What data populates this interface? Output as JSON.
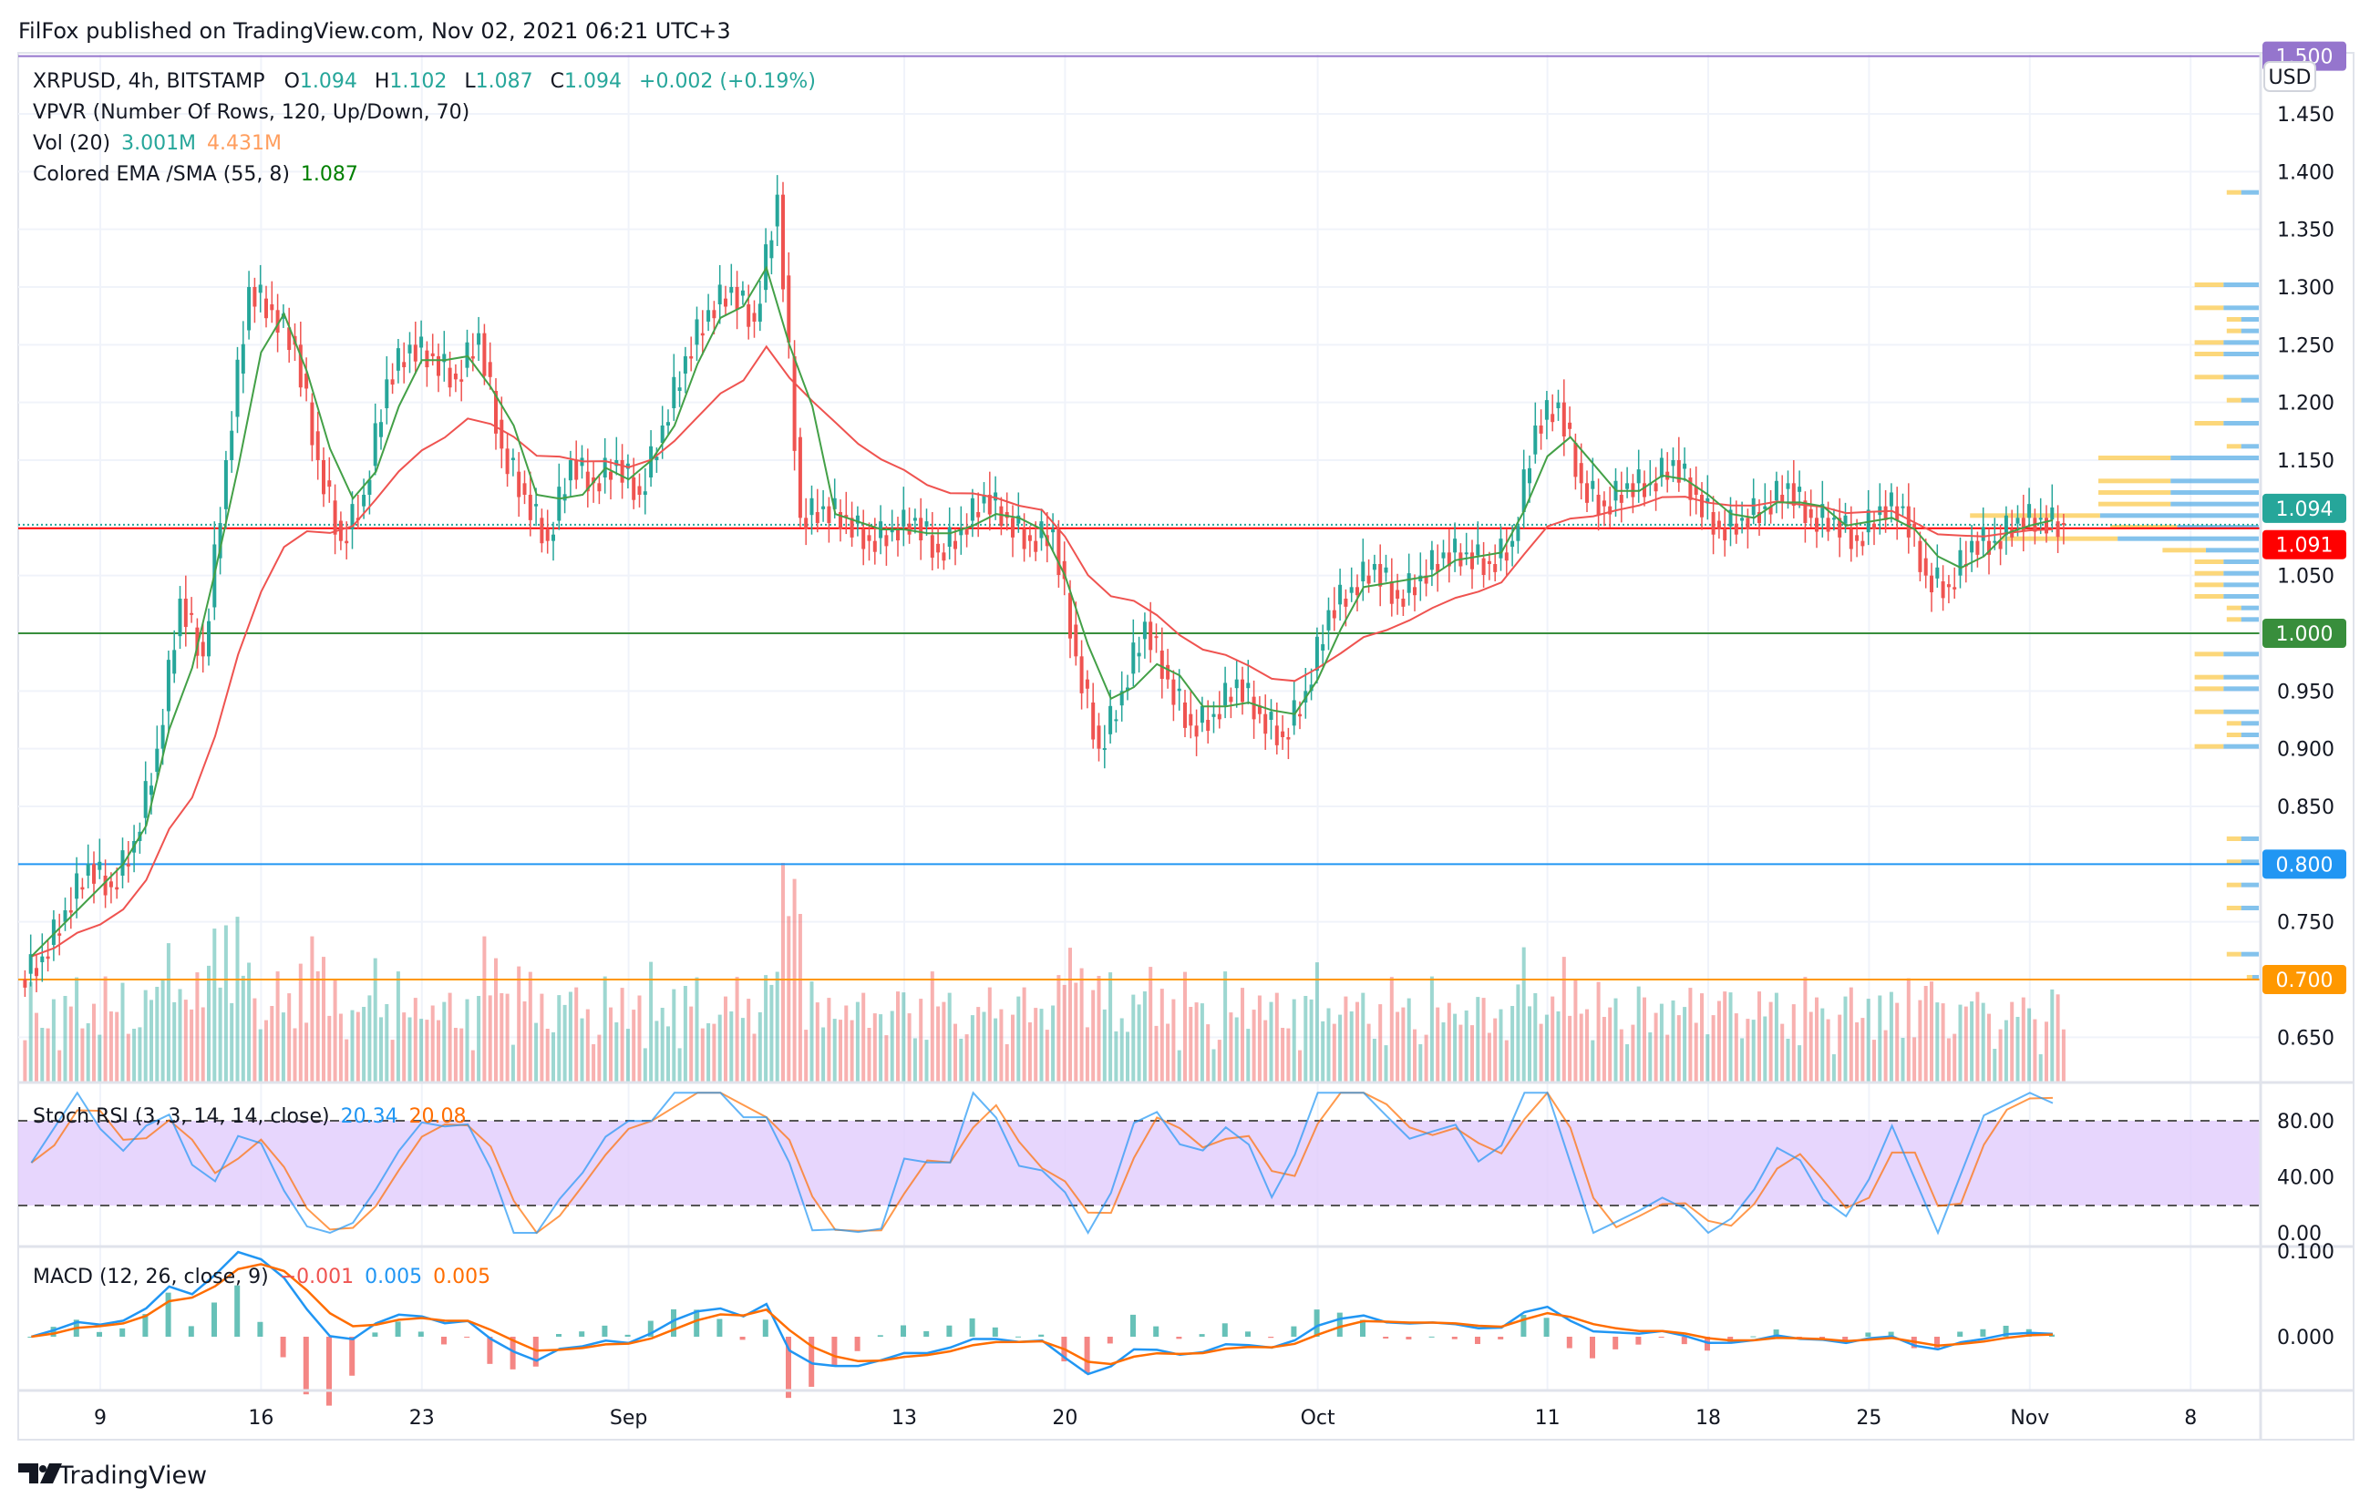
{
  "header": {
    "published": "FilFox published on TradingView.com, Nov 02, 2021 06:21 UTC+3"
  },
  "legend": {
    "symbol": "XRPUSD, 4h, BITSTAMP",
    "o_label": "O",
    "o": "1.094",
    "h_label": "H",
    "h": "1.102",
    "l_label": "L",
    "l": "1.087",
    "c_label": "C",
    "c": "1.094",
    "change": "+0.002 (+0.19%)",
    "vpvr": "VPVR (Number Of Rows, 120, Up/Down, 70)",
    "vol_label": "Vol (20)",
    "vol_1": "3.001M",
    "vol_2": "4.431M",
    "ema_label": "Colored EMA /SMA (55, 8)",
    "ema_value": "1.087",
    "stoch_label": "Stoch RSI (3, 3, 14, 14, close)",
    "stoch_k": "20.34",
    "stoch_d": "20.08",
    "macd_label": "MACD (12, 26, close, 9)",
    "macd_hist": "−0.001",
    "macd_line": "0.005",
    "macd_signal": "0.005"
  },
  "price_axis": {
    "currency": "USD",
    "ticks": [
      "1.450",
      "1.400",
      "1.350",
      "1.300",
      "1.250",
      "1.200",
      "1.150",
      "1.050",
      "0.950",
      "0.900",
      "0.850",
      "0.750",
      "0.650"
    ],
    "tick_values": [
      1.45,
      1.4,
      1.35,
      1.3,
      1.25,
      1.2,
      1.15,
      1.05,
      0.95,
      0.9,
      0.85,
      0.75,
      0.65
    ]
  },
  "levels": [
    {
      "label": "1.500",
      "value": 1.5,
      "color": "#9575cd"
    },
    {
      "label": "1.000",
      "value": 1.0,
      "color": "#388e3c"
    },
    {
      "label": "0.800",
      "value": 0.8,
      "color": "#2196f3"
    },
    {
      "label": "0.700",
      "value": 0.7,
      "color": "#ff9800"
    }
  ],
  "price_tags": [
    {
      "label": "1.094",
      "value": 1.094,
      "color": "#26a69a"
    },
    {
      "label": "1.091",
      "value": 1.091,
      "color": "#ff0000"
    }
  ],
  "stoch_axis": {
    "ticks": [
      "80.00",
      "40.00",
      "0.00"
    ],
    "values": [
      80,
      40,
      0
    ]
  },
  "macd_axis": {
    "ticks": [
      "0.100",
      "0.000"
    ],
    "values": [
      0.1,
      0
    ]
  },
  "time_axis": {
    "labels": [
      "9",
      "16",
      "23",
      "Sep",
      "13",
      "20",
      "Oct",
      "11",
      "18",
      "25",
      "Nov",
      "8"
    ],
    "day_index": [
      3,
      10,
      17,
      26,
      38,
      45,
      56,
      66,
      73,
      80,
      87,
      94
    ]
  },
  "footer": {
    "brand": "TradingView"
  },
  "colors": {
    "up": "#26a69a",
    "down": "#ef5350",
    "ema": "#ef5350",
    "sma": "#43a047",
    "stoch_k": "#2196f3",
    "stoch_d": "#ff6d00",
    "macd": "#2196f3",
    "signal": "#ff6d00"
  },
  "chart_data": {
    "type": "candlestick",
    "title": "XRPUSD, 4h, BITSTAMP",
    "x_start": "Aug 06, 2021",
    "x_unit": "day",
    "ylim": [
      0.6,
      1.5
    ],
    "closes": [
      0.72,
      0.76,
      0.8,
      0.78,
      0.82,
      0.9,
      1.03,
      0.98,
      1.15,
      1.3,
      1.28,
      1.25,
      1.15,
      1.08,
      1.12,
      1.22,
      1.25,
      1.24,
      1.22,
      1.26,
      1.16,
      1.12,
      1.08,
      1.15,
      1.13,
      1.15,
      1.12,
      1.18,
      1.24,
      1.28,
      1.3,
      1.27,
      1.38,
      1.1,
      1.11,
      1.1,
      1.08,
      1.09,
      1.1,
      1.07,
      1.09,
      1.12,
      1.1,
      1.08,
      1.09,
      0.98,
      0.9,
      0.95,
      1.01,
      0.96,
      0.92,
      0.93,
      0.96,
      0.93,
      0.91,
      0.95,
      1.02,
      1.04,
      1.06,
      1.03,
      1.05,
      1.07,
      1.07,
      1.06,
      1.08,
      1.18,
      1.2,
      1.13,
      1.11,
      1.13,
      1.13,
      1.15,
      1.12,
      1.09,
      1.1,
      1.11,
      1.13,
      1.1,
      1.1,
      1.08,
      1.11,
      1.11,
      1.05,
      1.04,
      1.08,
      1.08,
      1.1,
      1.1,
      1.094
    ]
  }
}
